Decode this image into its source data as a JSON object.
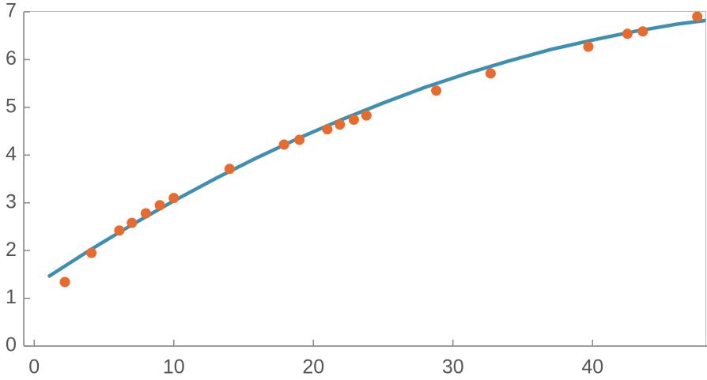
{
  "chart_data": {
    "type": "scatter",
    "points": {
      "color": "#ea6a2c",
      "x": [
        2.2,
        4.1,
        6.1,
        7,
        8,
        9,
        10,
        14,
        17.9,
        19,
        21,
        21.9,
        22.9,
        23.8,
        28.8,
        32.7,
        39.7,
        42.5,
        43.6,
        47.5
      ],
      "values": [
        1.34,
        1.95,
        2.42,
        2.58,
        2.78,
        2.95,
        3.1,
        3.71,
        4.22,
        4.32,
        4.54,
        4.64,
        4.74,
        4.83,
        5.35,
        5.71,
        6.27,
        6.54,
        6.59,
        6.9
      ]
    },
    "fit": {
      "color": "#3f8fb0",
      "x": [
        1,
        4,
        7,
        10,
        13,
        16,
        19,
        22,
        25,
        28,
        31,
        34,
        37,
        40,
        43,
        46,
        48.1
      ],
      "values": [
        1.45,
        2.01,
        2.54,
        3.04,
        3.51,
        3.95,
        4.36,
        4.74,
        5.09,
        5.42,
        5.71,
        5.97,
        6.21,
        6.41,
        6.59,
        6.74,
        6.82
      ]
    },
    "xlim": [
      -0.75,
      48.2
    ],
    "ylim": [
      0,
      7
    ],
    "xticks": [
      0,
      10,
      20,
      30,
      40
    ],
    "yticks": [
      0,
      1,
      2,
      3,
      4,
      5,
      6,
      7
    ]
  }
}
